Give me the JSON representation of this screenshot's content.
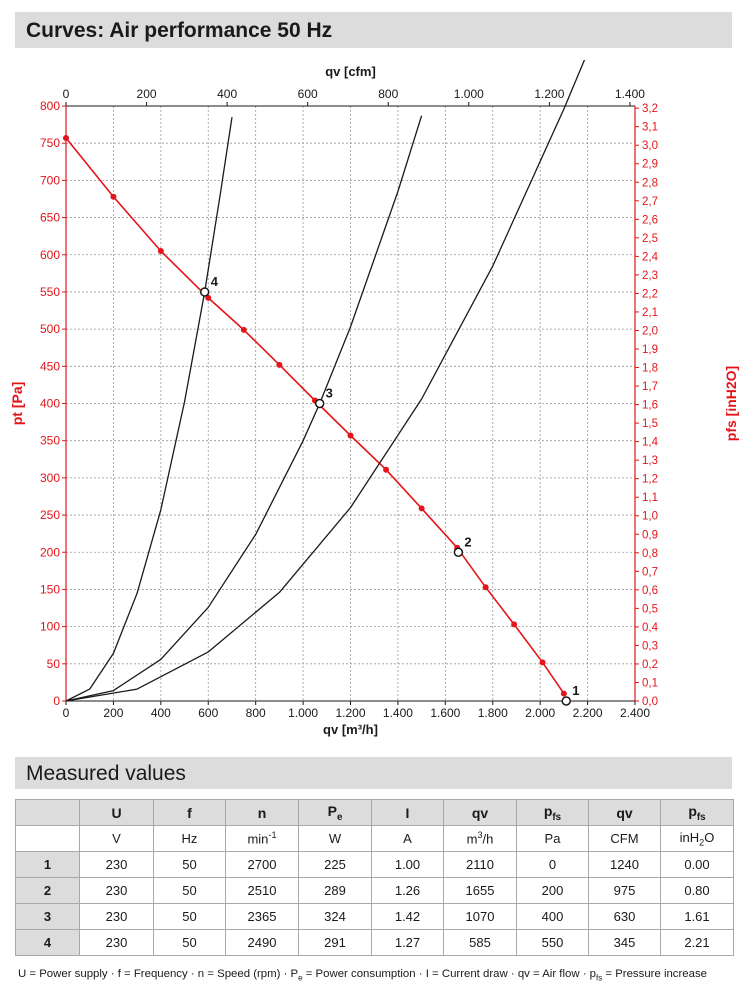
{
  "header": {
    "title": "Curves: Air performance 50 Hz"
  },
  "section2": {
    "title": "Measured values"
  },
  "colors": {
    "red": "#e3151b",
    "black": "#1a1a1a",
    "grid": "#9a9a9a",
    "header_bg": "#dcdcdc"
  },
  "chart_data": {
    "type": "line",
    "xlabel": "qv [m³/h]",
    "x2label": "qv [cfm]",
    "ylabel": "pt [Pa]",
    "y2label": "pfs [inH2O]",
    "xlim": [
      0,
      2400
    ],
    "ylim": [
      0,
      800
    ],
    "x_ticks": [
      "0",
      "200",
      "400",
      "600",
      "800",
      "1.000",
      "1.200",
      "1.400",
      "1.600",
      "1.800",
      "2.000",
      "2.200",
      "2.400"
    ],
    "x2_ticks": [
      "0",
      "200",
      "400",
      "600",
      "800",
      "1.000",
      "1.200",
      "1.400"
    ],
    "y_ticks": [
      "0",
      "50",
      "100",
      "150",
      "200",
      "250",
      "300",
      "350",
      "400",
      "450",
      "500",
      "550",
      "600",
      "650",
      "700",
      "750",
      "800"
    ],
    "y2_ticks": [
      "0,0",
      "0,1",
      "0,2",
      "0,3",
      "0,4",
      "0,5",
      "0,6",
      "0,7",
      "0,8",
      "0,9",
      "1,0",
      "1,1",
      "1,2",
      "1,3",
      "1,4",
      "1,5",
      "1,6",
      "1,7",
      "1,8",
      "1,9",
      "2,0",
      "2,1",
      "2,2",
      "2,3",
      "2,4",
      "2,5",
      "2,6",
      "2,7",
      "2,8",
      "2,9",
      "3,0",
      "3,1",
      "3,2"
    ],
    "grid": true,
    "series": [
      {
        "color": "#e3151b",
        "x": [
          0,
          200,
          400,
          600,
          750,
          900,
          1050,
          1200,
          1350,
          1500,
          1650,
          1770,
          1890,
          2010,
          2100
        ],
        "y": [
          757,
          678,
          605,
          542,
          499,
          452,
          404,
          357,
          311,
          259,
          206,
          153,
          103,
          52,
          10
        ]
      },
      {
        "color": "#1a1a1a",
        "x": [
          0,
          300,
          600,
          900,
          1200,
          1500,
          1800,
          2100,
          2200
        ],
        "y": [
          0,
          16,
          66,
          146,
          260,
          406,
          585,
          796,
          872
        ]
      },
      {
        "color": "#1a1a1a",
        "x": [
          0,
          200,
          400,
          600,
          800,
          1000,
          1070,
          1200,
          1400,
          1500
        ],
        "y": [
          0,
          14,
          56,
          126,
          224,
          350,
          400,
          503,
          685,
          787
        ]
      },
      {
        "color": "#1a1a1a",
        "x": [
          0,
          100,
          200,
          300,
          400,
          500,
          585,
          650,
          700
        ],
        "y": [
          0,
          16,
          64,
          145,
          257,
          402,
          550,
          680,
          785
        ]
      }
    ],
    "operating_points": [
      {
        "label": "1",
        "x": 2110,
        "y": 0
      },
      {
        "label": "2",
        "x": 1655,
        "y": 200
      },
      {
        "label": "3",
        "x": 1070,
        "y": 400
      },
      {
        "label": "4",
        "x": 585,
        "y": 550
      }
    ]
  },
  "table": {
    "headers": [
      {
        "main": "",
        "sub": ""
      },
      {
        "main": "U",
        "sub": ""
      },
      {
        "main": "f",
        "sub": ""
      },
      {
        "main": "n",
        "sub": ""
      },
      {
        "main": "P",
        "sub": "e"
      },
      {
        "main": "I",
        "sub": ""
      },
      {
        "main": "qv",
        "sub": ""
      },
      {
        "main": "p",
        "sub": "fs"
      },
      {
        "main": "qv",
        "sub": ""
      },
      {
        "main": "p",
        "sub": "fs"
      }
    ],
    "units": [
      "",
      "V",
      "Hz",
      "min-1",
      "W",
      "A",
      "m3/h",
      "Pa",
      "CFM",
      "inH2O"
    ],
    "rows": [
      [
        "1",
        "230",
        "50",
        "2700",
        "225",
        "1.00",
        "2110",
        "0",
        "1240",
        "0.00"
      ],
      [
        "2",
        "230",
        "50",
        "2510",
        "289",
        "1.26",
        "1655",
        "200",
        "975",
        "0.80"
      ],
      [
        "3",
        "230",
        "50",
        "2365",
        "324",
        "1.42",
        "1070",
        "400",
        "630",
        "1.61"
      ],
      [
        "4",
        "230",
        "50",
        "2490",
        "291",
        "1.27",
        "585",
        "550",
        "345",
        "2.21"
      ]
    ]
  },
  "legend": {
    "text": "U = Power supply · f = Frequency · n = Speed (rpm) · Pe = Power consumption · I = Current draw · qv = Air flow · pfs = Pressure increase"
  }
}
